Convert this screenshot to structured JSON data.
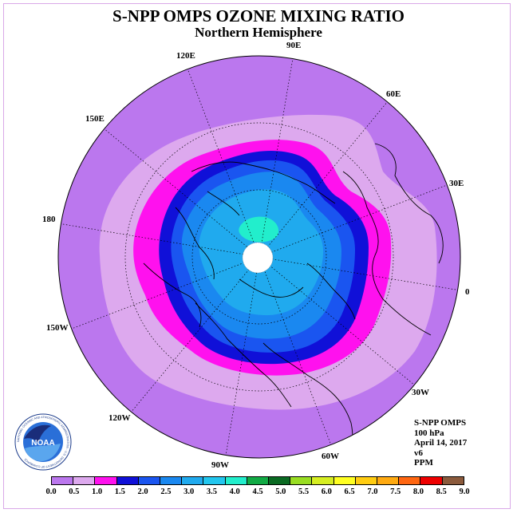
{
  "title": "S-NPP OMPS OZONE MIXING RATIO",
  "subtitle": "Northern Hemisphere",
  "longitude_labels": {
    "lon_90e": "90E",
    "lon_120e": "120E",
    "lon_60e": "60E",
    "lon_150e": "150E",
    "lon_30e": "30E",
    "lon_180": "180",
    "lon_0": "0",
    "lon_150w": "150W",
    "lon_30w": "30W",
    "lon_120w": "120W",
    "lon_60w": "60W",
    "lon_90w": "90W"
  },
  "info": {
    "instrument": "S-NPP OMPS",
    "level": "100 hPa",
    "date": "April 14, 2017",
    "version": "v6",
    "units": "PPM"
  },
  "colorbar": {
    "ticks": [
      "0.0",
      "0.5",
      "1.0",
      "1.5",
      "2.0",
      "2.5",
      "3.0",
      "3.5",
      "4.0",
      "4.5",
      "5.0",
      "5.5",
      "6.0",
      "6.5",
      "7.0",
      "7.5",
      "8.0",
      "8.5",
      "9.0"
    ],
    "colors": [
      "#bb77ee",
      "#dda9ee",
      "#ff11ee",
      "#1010d8",
      "#1a55f0",
      "#1a88f0",
      "#20aaee",
      "#22c6ee",
      "#22eecc",
      "#11aa44",
      "#0a6a22",
      "#99dd22",
      "#d6ee22",
      "#ffff22",
      "#ffcc11",
      "#ffaa11",
      "#ff6611",
      "#ee0000",
      "#8b5a3c"
    ]
  },
  "logo": {
    "text": "NOAA",
    "ring_text": "NATIONAL OCEANIC AND ATMOSPHERIC ADMINISTRATION · U.S. DEPARTMENT OF COMMERCE"
  }
}
